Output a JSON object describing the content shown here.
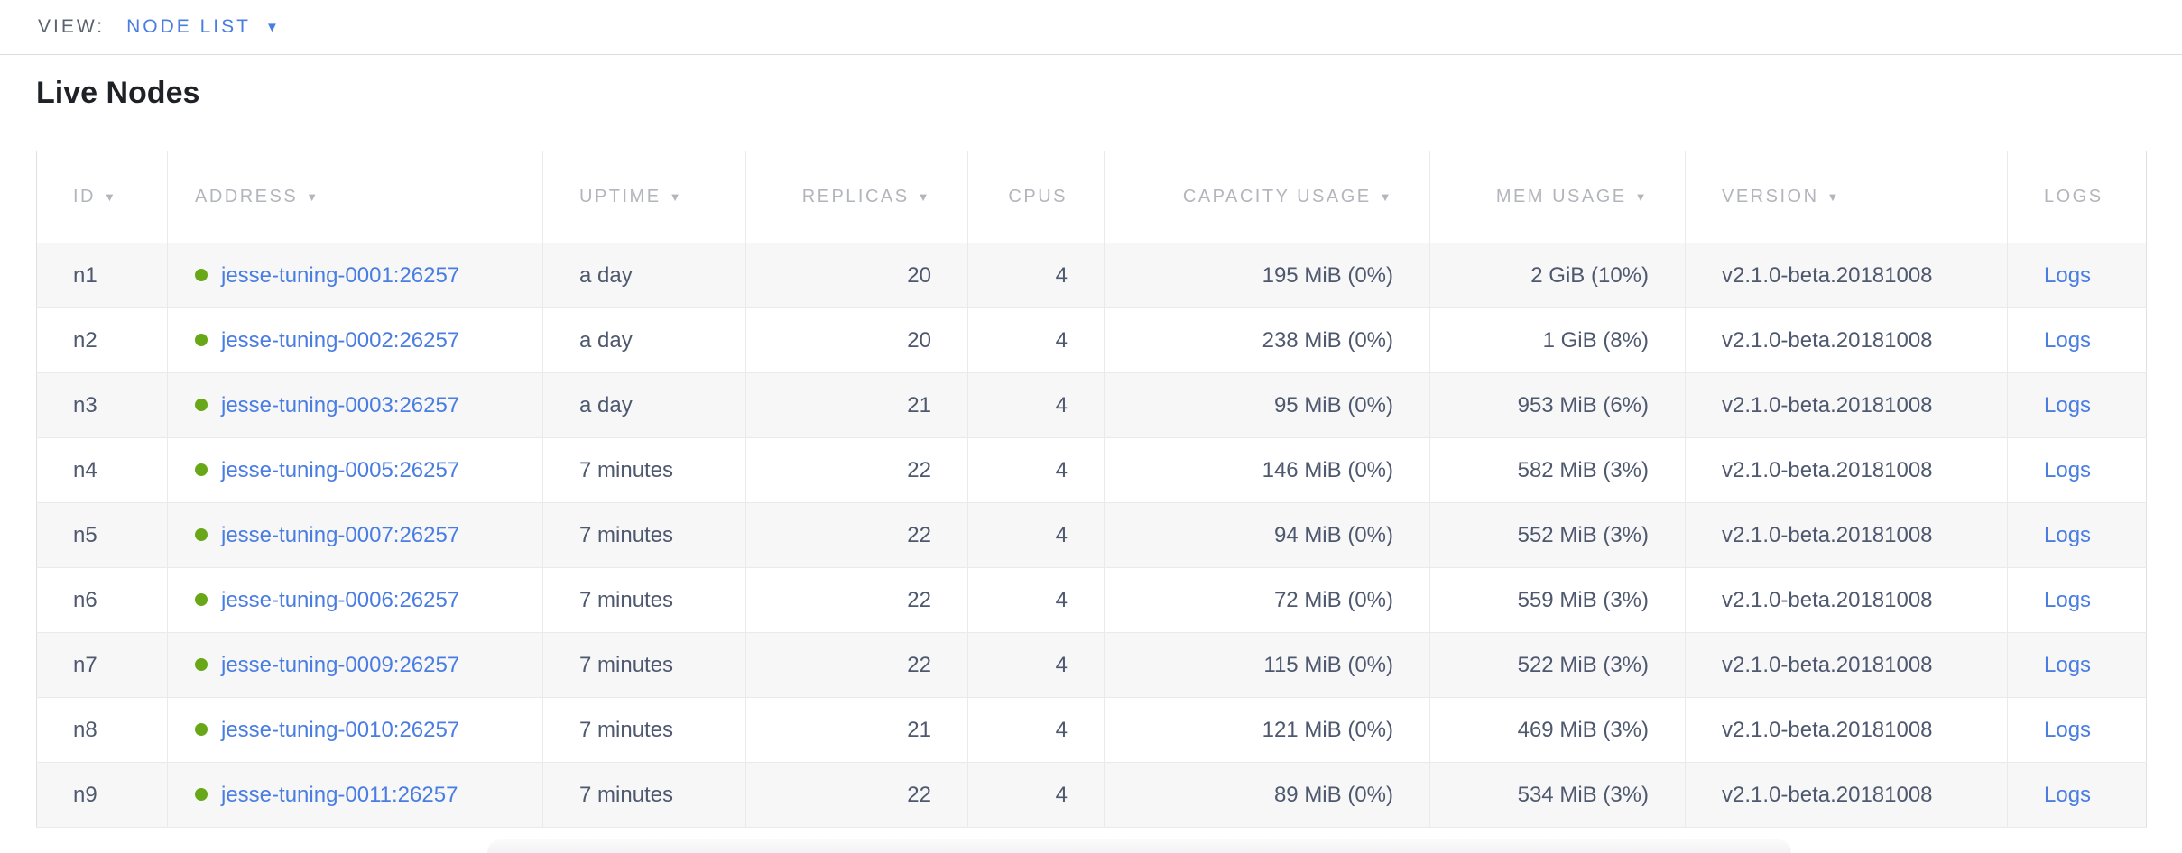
{
  "view_bar": {
    "label": "VIEW:",
    "selected_view": "NODE LIST",
    "caret_icon": "▼"
  },
  "section": {
    "title": "Live Nodes"
  },
  "nodes_table": {
    "sort_arrow_icon": "▼",
    "columns": [
      {
        "key": "id",
        "label": "ID",
        "sorted": true
      },
      {
        "key": "address",
        "label": "ADDRESS",
        "sorted": true
      },
      {
        "key": "uptime",
        "label": "UPTIME",
        "sorted": true
      },
      {
        "key": "replicas",
        "label": "REPLICAS",
        "sorted": true
      },
      {
        "key": "cpus",
        "label": "CPUS",
        "sorted": false
      },
      {
        "key": "capacity",
        "label": "CAPACITY USAGE",
        "sorted": true
      },
      {
        "key": "mem",
        "label": "MEM USAGE",
        "sorted": true
      },
      {
        "key": "version",
        "label": "VERSION",
        "sorted": true
      },
      {
        "key": "logs",
        "label": "LOGS",
        "sorted": false
      }
    ],
    "rows": [
      {
        "id": "n1",
        "address": "jesse-tuning-0001:26257",
        "uptime": "a day",
        "replicas": "20",
        "cpus": "4",
        "capacity": "195 MiB (0%)",
        "mem": "2 GiB (10%)",
        "version": "v2.1.0-beta.20181008",
        "logs": "Logs"
      },
      {
        "id": "n2",
        "address": "jesse-tuning-0002:26257",
        "uptime": "a day",
        "replicas": "20",
        "cpus": "4",
        "capacity": "238 MiB (0%)",
        "mem": "1 GiB (8%)",
        "version": "v2.1.0-beta.20181008",
        "logs": "Logs"
      },
      {
        "id": "n3",
        "address": "jesse-tuning-0003:26257",
        "uptime": "a day",
        "replicas": "21",
        "cpus": "4",
        "capacity": "95 MiB (0%)",
        "mem": "953 MiB (6%)",
        "version": "v2.1.0-beta.20181008",
        "logs": "Logs"
      },
      {
        "id": "n4",
        "address": "jesse-tuning-0005:26257",
        "uptime": "7 minutes",
        "replicas": "22",
        "cpus": "4",
        "capacity": "146 MiB (0%)",
        "mem": "582 MiB (3%)",
        "version": "v2.1.0-beta.20181008",
        "logs": "Logs"
      },
      {
        "id": "n5",
        "address": "jesse-tuning-0007:26257",
        "uptime": "7 minutes",
        "replicas": "22",
        "cpus": "4",
        "capacity": "94 MiB (0%)",
        "mem": "552 MiB (3%)",
        "version": "v2.1.0-beta.20181008",
        "logs": "Logs"
      },
      {
        "id": "n6",
        "address": "jesse-tuning-0006:26257",
        "uptime": "7 minutes",
        "replicas": "22",
        "cpus": "4",
        "capacity": "72 MiB (0%)",
        "mem": "559 MiB (3%)",
        "version": "v2.1.0-beta.20181008",
        "logs": "Logs"
      },
      {
        "id": "n7",
        "address": "jesse-tuning-0009:26257",
        "uptime": "7 minutes",
        "replicas": "22",
        "cpus": "4",
        "capacity": "115 MiB (0%)",
        "mem": "522 MiB (3%)",
        "version": "v2.1.0-beta.20181008",
        "logs": "Logs"
      },
      {
        "id": "n8",
        "address": "jesse-tuning-0010:26257",
        "uptime": "7 minutes",
        "replicas": "21",
        "cpus": "4",
        "capacity": "121 MiB (0%)",
        "mem": "469 MiB (3%)",
        "version": "v2.1.0-beta.20181008",
        "logs": "Logs"
      },
      {
        "id": "n9",
        "address": "jesse-tuning-0011:26257",
        "uptime": "7 minutes",
        "replicas": "22",
        "cpus": "4",
        "capacity": "89 MiB (0%)",
        "mem": "534 MiB (3%)",
        "version": "v2.1.0-beta.20181008",
        "logs": "Logs"
      }
    ],
    "status_icon": "live-green-dot"
  },
  "colors": {
    "link_blue": "#4a7de2",
    "live_green": "#68a818",
    "header_gray": "#b3b5bc",
    "cell_text": "#4e586e"
  }
}
